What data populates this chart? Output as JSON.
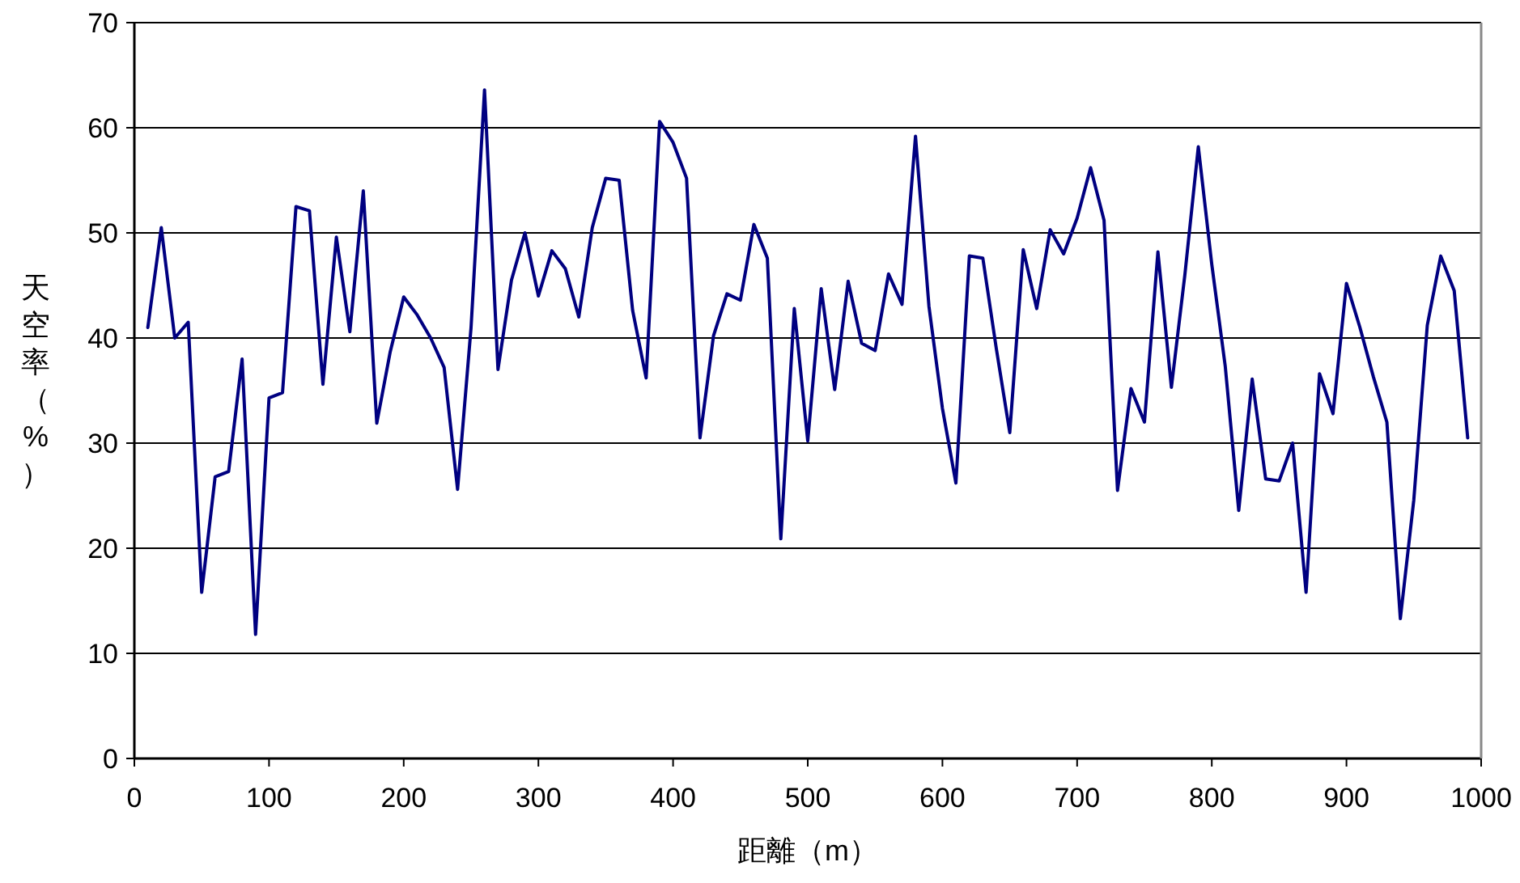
{
  "chart_data": {
    "type": "line",
    "xlabel": "距離（m）",
    "ylabel": "天空率（%）",
    "x": [
      10,
      20,
      30,
      40,
      50,
      60,
      70,
      80,
      90,
      100,
      110,
      120,
      130,
      140,
      150,
      160,
      170,
      180,
      190,
      200,
      210,
      220,
      230,
      240,
      250,
      260,
      270,
      280,
      290,
      300,
      310,
      320,
      330,
      340,
      350,
      360,
      370,
      380,
      390,
      400,
      410,
      420,
      430,
      440,
      450,
      460,
      470,
      480,
      490,
      500,
      510,
      520,
      530,
      540,
      550,
      560,
      570,
      580,
      590,
      600,
      610,
      620,
      630,
      640,
      650,
      660,
      670,
      680,
      690,
      700,
      710,
      720,
      730,
      740,
      750,
      760,
      770,
      780,
      790,
      800,
      810,
      820,
      830,
      840,
      850,
      860,
      870,
      880,
      890,
      900,
      910,
      920,
      930,
      940,
      950,
      960,
      970,
      980,
      990
    ],
    "series": [
      {
        "color": "#000080",
        "values": [
          41,
          50.5,
          40,
          41.5,
          15.8,
          26.8,
          27.3,
          38,
          11.8,
          34.3,
          34.8,
          52.5,
          52.1,
          35.6,
          49.6,
          40.6,
          54,
          31.9,
          38.7,
          43.9,
          42.2,
          40,
          37.2,
          25.6,
          41,
          63.6,
          37,
          45.5,
          50,
          44,
          48.3,
          46.6,
          42,
          50.5,
          55.2,
          55,
          42.6,
          36.2,
          60.6,
          58.6,
          55.2,
          30.5,
          40.2,
          44.2,
          43.6,
          50.8,
          47.6,
          20.9,
          42.8,
          30.2,
          44.7,
          35.1,
          45.4,
          39.5,
          38.8,
          46.1,
          43.2,
          59.2,
          43,
          33.3,
          26.2,
          47.8,
          47.6,
          39,
          31,
          48.4,
          42.8,
          50.3,
          48,
          51.4,
          56.2,
          51.2,
          25.5,
          35.2,
          32,
          48.2,
          35.3,
          46,
          58.2,
          47,
          37.3,
          23.6,
          36.1,
          26.6,
          26.4,
          30,
          15.8,
          36.6,
          32.8,
          45.2,
          41,
          36.3,
          32,
          13.3,
          24.6,
          41.2,
          47.8,
          44.5,
          30.5
        ]
      }
    ],
    "xlim": [
      0,
      1000
    ],
    "xticks": [
      0,
      100,
      200,
      300,
      400,
      500,
      600,
      700,
      800,
      900,
      1000
    ],
    "ylim": [
      0,
      70
    ],
    "yticks": [
      0,
      10,
      20,
      30,
      40,
      50,
      60,
      70
    ],
    "grid": "y",
    "marker": "none",
    "line_style": "solid"
  }
}
